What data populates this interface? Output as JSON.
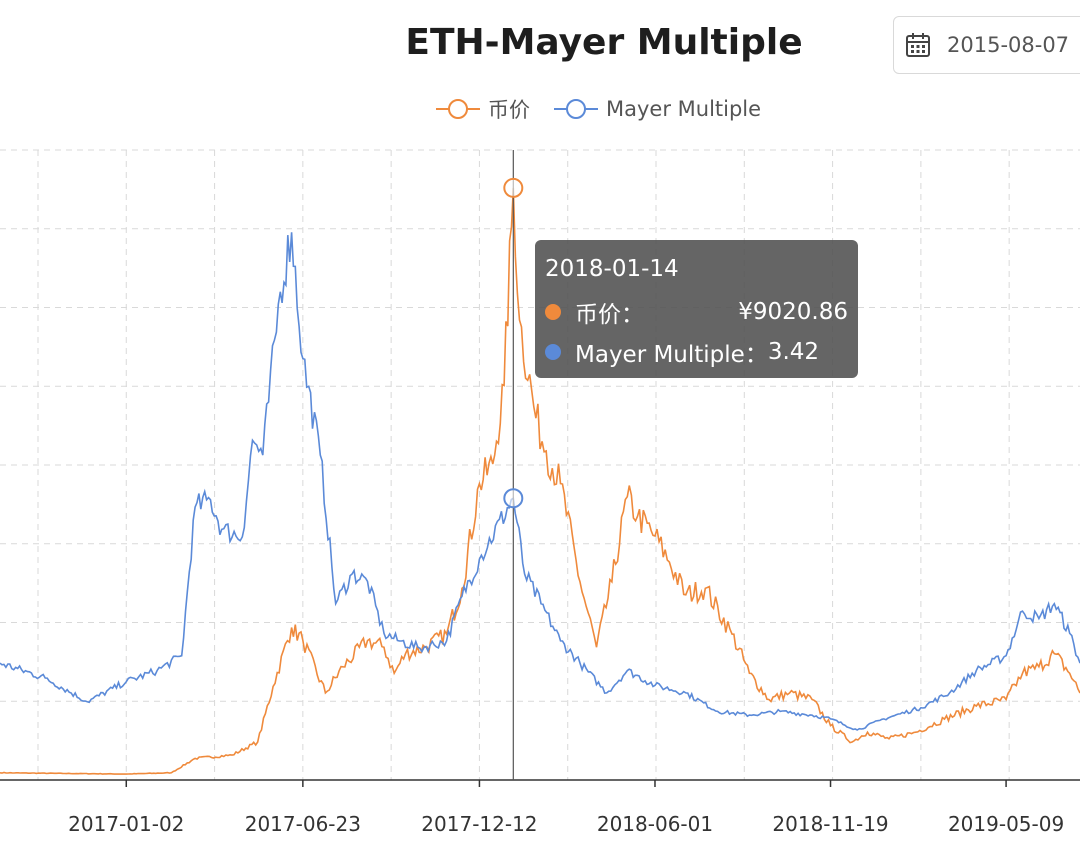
{
  "date_picker": {
    "value": "2015-08-07",
    "icon": "calendar-icon"
  },
  "tooltip": {
    "date": "2018-01-14",
    "rows": [
      {
        "label": "币价：",
        "value": "¥9020.86",
        "color": "#ef8a3c"
      },
      {
        "label": "Mayer Multiple：",
        "value": "3.42",
        "color": "#5b8ad8"
      }
    ]
  },
  "chart_data": {
    "type": "line",
    "title": "ETH-Mayer Multiple",
    "legend_position": "top-center",
    "grid": true,
    "x_ticks": [
      "2017-01-02",
      "2017-06-23",
      "2017-12-12",
      "2018-06-01",
      "2018-11-19",
      "2019-05-09"
    ],
    "x_range": [
      "2016-09-01",
      "2019-07-20"
    ],
    "series": [
      {
        "name": "币价",
        "color": "#ef8a3c",
        "points": [
          [
            "2016-09-01",
            80
          ],
          [
            "2016-11-01",
            70
          ],
          [
            "2017-01-02",
            60
          ],
          [
            "2017-02-15",
            80
          ],
          [
            "2017-03-10",
            300
          ],
          [
            "2017-04-15",
            350
          ],
          [
            "2017-05-10",
            550
          ],
          [
            "2017-05-25",
            1400
          ],
          [
            "2017-06-12",
            2300
          ],
          [
            "2017-06-23",
            2100
          ],
          [
            "2017-07-15",
            1300
          ],
          [
            "2017-08-01",
            1700
          ],
          [
            "2017-08-25",
            2100
          ],
          [
            "2017-09-10",
            2000
          ],
          [
            "2017-09-20",
            1600
          ],
          [
            "2017-10-01",
            1900
          ],
          [
            "2017-10-20",
            2000
          ],
          [
            "2017-11-10",
            2200
          ],
          [
            "2017-11-25",
            2900
          ],
          [
            "2017-12-12",
            4500
          ],
          [
            "2017-12-25",
            4800
          ],
          [
            "2018-01-05",
            6000
          ],
          [
            "2018-01-14",
            9020.86
          ],
          [
            "2018-01-20",
            7000
          ],
          [
            "2018-02-05",
            5500
          ],
          [
            "2018-02-15",
            5000
          ],
          [
            "2018-03-01",
            4500
          ],
          [
            "2018-03-20",
            3000
          ],
          [
            "2018-04-05",
            2000
          ],
          [
            "2018-04-20",
            3000
          ],
          [
            "2018-05-05",
            4300
          ],
          [
            "2018-05-15",
            4000
          ],
          [
            "2018-06-01",
            3700
          ],
          [
            "2018-06-15",
            3300
          ],
          [
            "2018-07-01",
            2800
          ],
          [
            "2018-07-20",
            2900
          ],
          [
            "2018-08-15",
            2200
          ],
          [
            "2018-09-01",
            1600
          ],
          [
            "2018-09-20",
            1200
          ],
          [
            "2018-10-10",
            1300
          ],
          [
            "2018-11-01",
            1200
          ],
          [
            "2018-11-19",
            800
          ],
          [
            "2018-12-10",
            550
          ],
          [
            "2018-12-25",
            700
          ],
          [
            "2019-01-15",
            600
          ],
          [
            "2019-02-10",
            700
          ],
          [
            "2019-03-10",
            900
          ],
          [
            "2019-04-10",
            1100
          ],
          [
            "2019-05-09",
            1200
          ],
          [
            "2019-05-25",
            1600
          ],
          [
            "2019-06-10",
            1700
          ],
          [
            "2019-06-25",
            1900
          ],
          [
            "2019-07-10",
            1600
          ],
          [
            "2019-07-20",
            1300
          ]
        ]
      },
      {
        "name": "Mayer Multiple",
        "color": "#5b8ad8",
        "points": [
          [
            "2016-09-01",
            1.2
          ],
          [
            "2016-10-15",
            1.0
          ],
          [
            "2016-11-25",
            0.68
          ],
          [
            "2017-01-02",
            0.95
          ],
          [
            "2017-02-01",
            1.1
          ],
          [
            "2017-02-25",
            1.3
          ],
          [
            "2017-03-10",
            3.3
          ],
          [
            "2017-03-25",
            3.4
          ],
          [
            "2017-04-05",
            3.0
          ],
          [
            "2017-04-25",
            2.9
          ],
          [
            "2017-05-05",
            4.2
          ],
          [
            "2017-05-15",
            4.0
          ],
          [
            "2017-06-01",
            6.2
          ],
          [
            "2017-06-12",
            7.0
          ],
          [
            "2017-06-23",
            5.3
          ],
          [
            "2017-07-10",
            4.0
          ],
          [
            "2017-07-25",
            2.0
          ],
          [
            "2017-08-10",
            2.4
          ],
          [
            "2017-08-25",
            2.3
          ],
          [
            "2017-09-10",
            1.6
          ],
          [
            "2017-09-25",
            1.5
          ],
          [
            "2017-10-15",
            1.4
          ],
          [
            "2017-11-10",
            1.5
          ],
          [
            "2017-11-25",
            2.1
          ],
          [
            "2017-12-12",
            2.6
          ],
          [
            "2018-01-14",
            3.42
          ],
          [
            "2018-01-25",
            2.4
          ],
          [
            "2018-02-10",
            2.0
          ],
          [
            "2018-03-01",
            1.5
          ],
          [
            "2018-03-20",
            1.2
          ],
          [
            "2018-04-15",
            0.8
          ],
          [
            "2018-05-05",
            1.1
          ],
          [
            "2018-06-01",
            0.9
          ],
          [
            "2018-07-01",
            0.8
          ],
          [
            "2018-08-01",
            0.55
          ],
          [
            "2018-09-01",
            0.5
          ],
          [
            "2018-10-01",
            0.55
          ],
          [
            "2018-11-01",
            0.5
          ],
          [
            "2018-11-19",
            0.45
          ],
          [
            "2018-12-15",
            0.3
          ],
          [
            "2019-01-10",
            0.45
          ],
          [
            "2019-02-15",
            0.6
          ],
          [
            "2019-03-15",
            0.8
          ],
          [
            "2019-04-10",
            1.1
          ],
          [
            "2019-05-09",
            1.3
          ],
          [
            "2019-05-25",
            1.9
          ],
          [
            "2019-06-10",
            1.8
          ],
          [
            "2019-06-25",
            2.0
          ],
          [
            "2019-07-10",
            1.6
          ],
          [
            "2019-07-20",
            1.2
          ]
        ]
      }
    ],
    "highlight": {
      "date": "2018-01-14",
      "price": 9020.86,
      "mayer": 3.42
    }
  }
}
